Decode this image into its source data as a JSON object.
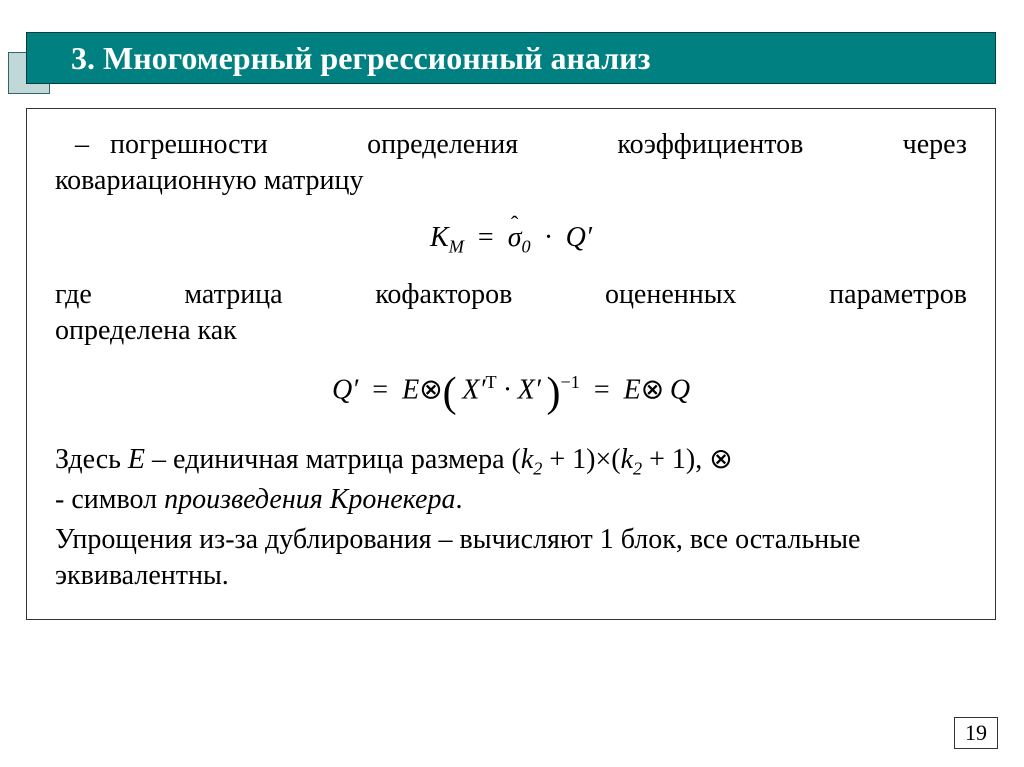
{
  "title": "3. Многомерный регрессионный анализ",
  "para1_prefix": "–",
  "para1_words": [
    "погрешности",
    "определения",
    "коэффициентов",
    "через"
  ],
  "para1_line2": "ковариационную матрицу",
  "formula1": {
    "lhs": "K",
    "lhs_sub": "M",
    "eq": "=",
    "sigma": "σ",
    "sigma_hat": "ˆ",
    "sigma_sub": "0",
    "dot": "·",
    "Q": "Q",
    "Q_prime": "′"
  },
  "para2_words": [
    "где",
    "матрица",
    "кофакторов",
    "оцененных",
    "параметров"
  ],
  "para2_line2": "определена как",
  "formula2": {
    "Q": "Q",
    "prime": "′",
    "eq": "=",
    "E": "E",
    "otimes": "⊗",
    "X": "X",
    "T": "T",
    "dot": "·",
    "inv": "−1",
    "eq2": "=",
    "Q2": "Q"
  },
  "para3_a": "Здесь ",
  "para3_E": "E",
  "para3_b": " – единичная матрица размера (",
  "para3_k": "k",
  "para3_sub": "2",
  "para3_c": " + 1)×(",
  "para3_d": " + 1), ",
  "para3_otimes": "⊗",
  "para3_line2_a": "- символ ",
  "para3_line2_ital": "произведения Кронекера",
  "para3_line2_b": ".",
  "para4": "Упрощения из-за дублирования – вычисляют 1 блок, все остальные эквивалентны.",
  "page_number": "19",
  "colors": {
    "teal": "#008080",
    "corner": "#c0d8d8",
    "border": "#333333"
  }
}
